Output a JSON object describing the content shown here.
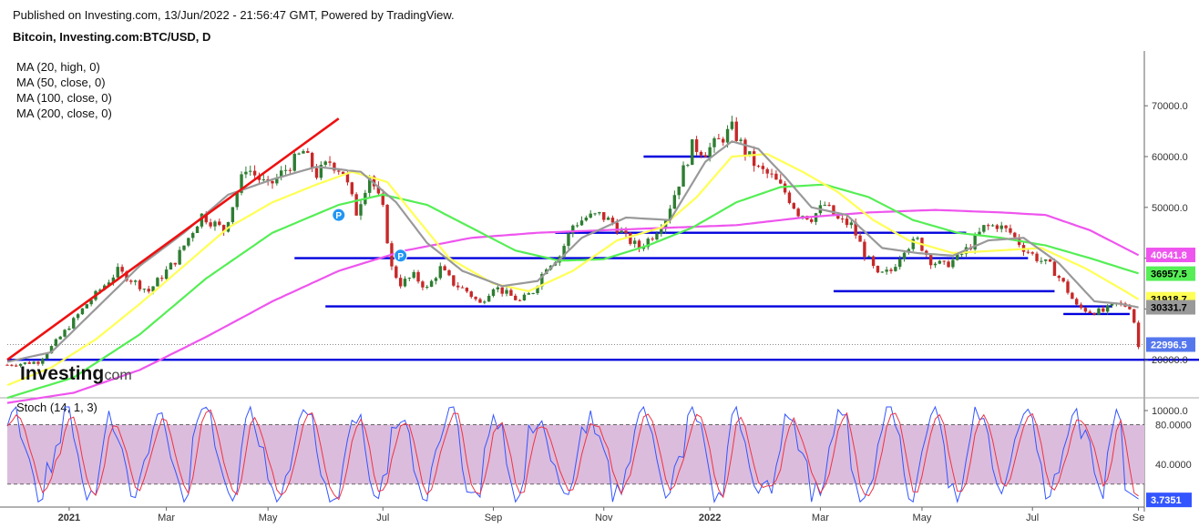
{
  "header": {
    "published": "Published on Investing.com, 13/Jun/2022 - 21:56:47 GMT, Powered by TradingView.",
    "title": "Bitcoin, Investing.com:BTC/USD, D"
  },
  "logo": {
    "main": "Investing",
    "suffix": ".com"
  },
  "colors": {
    "candle_up": "#2e7d32",
    "candle_down": "#c62828",
    "ma20": "#999999",
    "ma50": "#ffff55",
    "ma100": "#55ee55",
    "ma200": "#ee55ee",
    "levels": "#0000dd",
    "trendline": "#ee1111",
    "stoch_k": "#3355ff",
    "stoch_d": "#ee3344",
    "stoch_band": "#dcbcdc"
  },
  "chart_data": [
    {
      "type": "candlestick",
      "title": "Bitcoin, Investing.com:BTC/USD, D",
      "indicators": [
        "MA (20, high, 0)",
        "MA (50, close, 0)",
        "MA (100, close, 0)",
        "MA (200, close, 0)"
      ],
      "x_ticks": [
        "2021",
        "Mar",
        "May",
        "Jul",
        "Sep",
        "Nov",
        "2022",
        "Mar",
        "May",
        "Jul",
        "Se"
      ],
      "y_ticks": [
        10000,
        20000,
        30000,
        40000,
        50000,
        60000,
        70000
      ],
      "y_tick_labels": [
        "10000.0",
        "20000.0",
        "30000.0",
        "40000.0",
        "50000.0",
        "60000.0",
        "70000.0"
      ],
      "ylim": [
        8000,
        76000
      ],
      "close_path": [
        [
          0,
          19000
        ],
        [
          7,
          19600
        ],
        [
          12,
          24500
        ],
        [
          18,
          31000
        ],
        [
          25,
          37500
        ],
        [
          32,
          33500
        ],
        [
          38,
          39500
        ],
        [
          44,
          48500
        ],
        [
          49,
          45500
        ],
        [
          54,
          58000
        ],
        [
          59,
          54000
        ],
        [
          63,
          57500
        ],
        [
          67,
          61000
        ],
        [
          70,
          56500
        ],
        [
          73,
          59000
        ],
        [
          76,
          57000
        ],
        [
          79,
          49000
        ],
        [
          82,
          56500
        ],
        [
          85,
          49500
        ],
        [
          87,
          38000
        ],
        [
          89,
          35000
        ],
        [
          92,
          36500
        ],
        [
          95,
          34000
        ],
        [
          98,
          38000
        ],
        [
          101,
          35000
        ],
        [
          104,
          33500
        ],
        [
          107,
          31000
        ],
        [
          110,
          34500
        ],
        [
          113,
          33000
        ],
        [
          116,
          31500
        ],
        [
          119,
          33500
        ],
        [
          122,
          38500
        ],
        [
          125,
          40500
        ],
        [
          128,
          46500
        ],
        [
          131,
          48000
        ],
        [
          134,
          48500
        ],
        [
          137,
          47000
        ],
        [
          140,
          44000
        ],
        [
          143,
          42000
        ],
        [
          146,
          44500
        ],
        [
          149,
          48000
        ],
        [
          152,
          55000
        ],
        [
          155,
          62000
        ],
        [
          158,
          61000
        ],
        [
          161,
          63000
        ],
        [
          164,
          65500
        ],
        [
          167,
          61000
        ],
        [
          170,
          57500
        ],
        [
          173,
          56000
        ],
        [
          176,
          53000
        ],
        [
          179,
          49000
        ],
        [
          182,
          48000
        ],
        [
          185,
          50500
        ],
        [
          188,
          47500
        ],
        [
          191,
          46500
        ],
        [
          194,
          41000
        ],
        [
          197,
          36500
        ],
        [
          200,
          37500
        ],
        [
          203,
          42000
        ],
        [
          206,
          43500
        ],
        [
          209,
          39500
        ],
        [
          212,
          38500
        ],
        [
          215,
          40000
        ],
        [
          218,
          42500
        ],
        [
          221,
          46000
        ],
        [
          224,
          46500
        ],
        [
          227,
          45000
        ],
        [
          230,
          42000
        ],
        [
          233,
          40000
        ],
        [
          236,
          38500
        ],
        [
          239,
          35000
        ],
        [
          242,
          30500
        ],
        [
          245,
          29500
        ],
        [
          248,
          29500
        ],
        [
          251,
          31000
        ],
        [
          254,
          30500
        ],
        [
          255,
          27500
        ],
        [
          256,
          22500
        ]
      ],
      "ma20": [
        [
          0,
          19600
        ],
        [
          10,
          21500
        ],
        [
          20,
          30000
        ],
        [
          30,
          38500
        ],
        [
          40,
          45000
        ],
        [
          50,
          52500
        ],
        [
          60,
          55500
        ],
        [
          70,
          58000
        ],
        [
          80,
          57000
        ],
        [
          88,
          51000
        ],
        [
          95,
          43000
        ],
        [
          103,
          37500
        ],
        [
          112,
          34500
        ],
        [
          120,
          35500
        ],
        [
          130,
          44000
        ],
        [
          140,
          48000
        ],
        [
          150,
          47500
        ],
        [
          158,
          59000
        ],
        [
          164,
          63000
        ],
        [
          170,
          61500
        ],
        [
          176,
          56000
        ],
        [
          182,
          50000
        ],
        [
          190,
          48500
        ],
        [
          198,
          42000
        ],
        [
          206,
          41000
        ],
        [
          214,
          40500
        ],
        [
          222,
          43500
        ],
        [
          230,
          44000
        ],
        [
          238,
          39000
        ],
        [
          246,
          31500
        ],
        [
          252,
          31000
        ],
        [
          256,
          30300
        ]
      ],
      "ma50": [
        [
          0,
          15000
        ],
        [
          10,
          18500
        ],
        [
          20,
          24000
        ],
        [
          30,
          31000
        ],
        [
          40,
          38500
        ],
        [
          50,
          46000
        ],
        [
          60,
          51000
        ],
        [
          70,
          54500
        ],
        [
          78,
          57000
        ],
        [
          86,
          55000
        ],
        [
          93,
          47500
        ],
        [
          100,
          40000
        ],
        [
          110,
          35000
        ],
        [
          118,
          33500
        ],
        [
          128,
          37500
        ],
        [
          138,
          43500
        ],
        [
          148,
          46000
        ],
        [
          156,
          52000
        ],
        [
          164,
          60000
        ],
        [
          172,
          60500
        ],
        [
          180,
          57000
        ],
        [
          188,
          53000
        ],
        [
          196,
          47500
        ],
        [
          204,
          43500
        ],
        [
          214,
          41000
        ],
        [
          224,
          41500
        ],
        [
          234,
          42000
        ],
        [
          244,
          38000
        ],
        [
          252,
          34000
        ],
        [
          256,
          31900
        ]
      ],
      "ma100": [
        [
          0,
          12500
        ],
        [
          15,
          16500
        ],
        [
          30,
          25000
        ],
        [
          45,
          36000
        ],
        [
          60,
          45000
        ],
        [
          75,
          50500
        ],
        [
          85,
          52500
        ],
        [
          95,
          50500
        ],
        [
          105,
          46000
        ],
        [
          115,
          41500
        ],
        [
          125,
          39500
        ],
        [
          135,
          39800
        ],
        [
          145,
          42500
        ],
        [
          155,
          46000
        ],
        [
          165,
          51000
        ],
        [
          175,
          54000
        ],
        [
          185,
          54500
        ],
        [
          195,
          52000
        ],
        [
          205,
          47500
        ],
        [
          215,
          45000
        ],
        [
          225,
          44000
        ],
        [
          235,
          42500
        ],
        [
          245,
          40000
        ],
        [
          256,
          37000
        ]
      ],
      "ma200": [
        [
          0,
          11500
        ],
        [
          15,
          13500
        ],
        [
          30,
          18000
        ],
        [
          45,
          24500
        ],
        [
          60,
          31500
        ],
        [
          75,
          37500
        ],
        [
          90,
          41500
        ],
        [
          105,
          44000
        ],
        [
          120,
          45000
        ],
        [
          135,
          45500
        ],
        [
          150,
          46000
        ],
        [
          165,
          46500
        ],
        [
          180,
          48000
        ],
        [
          195,
          49000
        ],
        [
          210,
          49500
        ],
        [
          225,
          49000
        ],
        [
          235,
          48500
        ],
        [
          245,
          45500
        ],
        [
          256,
          40600
        ]
      ],
      "levels": [
        {
          "value": 20000,
          "from": 0,
          "to": 270
        },
        {
          "value": 30500,
          "from": 72,
          "to": 250
        },
        {
          "value": 33500,
          "from": 187,
          "to": 237
        },
        {
          "value": 40000,
          "from": 65,
          "to": 231
        },
        {
          "value": 45000,
          "from": 124,
          "to": 217
        },
        {
          "value": 60000,
          "from": 144,
          "to": 159
        },
        {
          "value": 29000,
          "from": 239,
          "to": 254
        }
      ],
      "trendline": {
        "from": [
          0,
          20000
        ],
        "to": [
          75,
          67500
        ]
      },
      "markers": [
        {
          "x": 75,
          "y": 48500,
          "label": "P"
        },
        {
          "x": 89,
          "y": 40500,
          "label": "P"
        }
      ],
      "price_tags": [
        {
          "value": 40641.8,
          "label": "40641.8",
          "bg": "#ee55ee",
          "fg": "#ffffff"
        },
        {
          "value": 36957.5,
          "label": "36957.5",
          "bg": "#55ee55",
          "fg": "#000000"
        },
        {
          "value": 31918.7,
          "label": "31918.7",
          "bg": "#ffff55",
          "fg": "#000000"
        },
        {
          "value": 30331.7,
          "label": "30331.7",
          "bg": "#999999",
          "fg": "#000000"
        },
        {
          "value": 22996.5,
          "label": "22996.5",
          "bg": "#5577ee",
          "fg": "#ffffff"
        }
      ]
    },
    {
      "type": "line",
      "title": "Stoch (14, 1, 3)",
      "y_ticks": [
        40,
        80
      ],
      "y_tick_labels": [
        "40.0000",
        "80.0000"
      ],
      "band": [
        20,
        80
      ],
      "ylim": [
        0,
        100
      ],
      "last_value": "3.7351"
    }
  ]
}
